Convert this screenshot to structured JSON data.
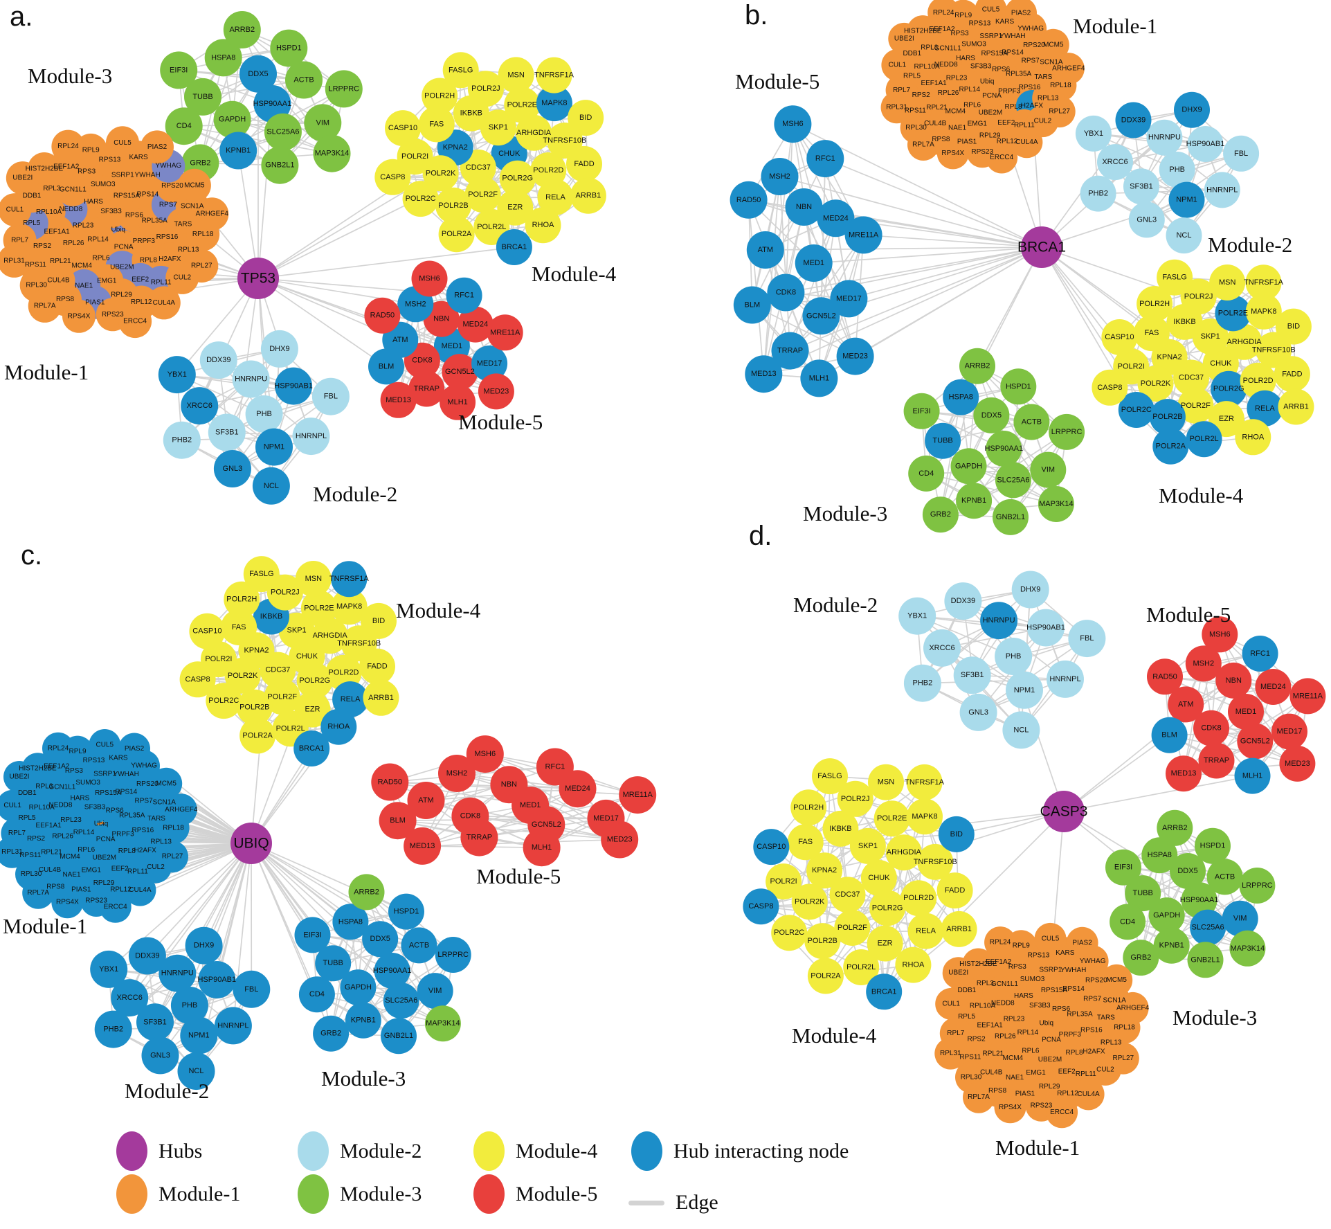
{
  "palette": {
    "hub": "#A43A9C",
    "module1": "#F2953B",
    "module2": "#A9DBEB",
    "module3": "#7FC242",
    "module4": "#F2EC3D",
    "module5": "#E8403C",
    "hub_interacting": "#1C8EC9",
    "hub_interacting_muted": "#7B87C7",
    "edge": "#D3D3D3",
    "node_label": "#111111"
  },
  "gene_sets": {
    "m1": [
      "Ubiq",
      "RPL14",
      "SF3B3",
      "PCNA",
      "RPL23",
      "RPS6",
      "RPL6",
      "HARS",
      "PRPF3",
      "RPL26",
      "RPS15A",
      "UBE2M",
      "NEDD8",
      "RPL35A",
      "MCM4",
      "SUMO3",
      "RPL8",
      "EEF1A1",
      "RPS14",
      "EMG1",
      "GCN1L1",
      "RPS16",
      "RPL21",
      "SSRP1",
      "EEF2",
      "RPL10A",
      "RPS7",
      "NAE1",
      "RPS3",
      "H2AFX",
      "RPS2",
      "YWHAH",
      "RPL29",
      "RPL3",
      "TARS",
      "CUL4B",
      "RPS13",
      "RPL11",
      "RPL5",
      "RPS20",
      "PIAS1",
      "EEF1A2",
      "RPL13",
      "RPS11",
      "KARS",
      "RPL12",
      "DDB1",
      "SCN1A",
      "RPS8",
      "RPL9",
      "CUL2",
      "RPL7",
      "YWHAG",
      "RPS23",
      "HIST2H2BE",
      "RPL18",
      "RPL30",
      "CUL5",
      "CUL4A",
      "CUL1",
      "MCM5",
      "RPS4X",
      "RPL24",
      "RPL27",
      "RPL31",
      "PIAS2",
      "ERCC4",
      "UBE2I",
      "ARHGEF4",
      "RPL7A"
    ],
    "m2": [
      "PHB",
      "SF3B1",
      "HNRNPU",
      "NPM1",
      "XRCC6",
      "HSP90AB1",
      "GNL3",
      "DDX39",
      "HNRNPL",
      "PHB2",
      "DHX9",
      "NCL",
      "YBX1",
      "FBL"
    ],
    "m3": [
      "HSP90AA1",
      "GAPDH",
      "DDX5",
      "SLC25A6",
      "TUBB",
      "ACTB",
      "KPNB1",
      "HSPA8",
      "VIM",
      "CD4",
      "HSPD1",
      "GNB2L1",
      "EIF3I",
      "LRPPRC",
      "GRB2",
      "ARRB2",
      "MAP3K14"
    ],
    "m4": [
      "CHUK",
      "CDC37",
      "SKP1",
      "POLR2G",
      "KPNA2",
      "ARHGDIA",
      "POLR2F",
      "IKBKB",
      "POLR2D",
      "POLR2K",
      "POLR2E",
      "EZR",
      "FAS",
      "TNFRSF10B",
      "POLR2B",
      "POLR2J",
      "RELA",
      "POLR2I",
      "MAPK8",
      "POLR2L",
      "POLR2H",
      "FADD",
      "POLR2C",
      "MSN",
      "RHOA",
      "CASP10",
      "BID",
      "POLR2A",
      "FASLG",
      "ARRB1",
      "CASP8",
      "TNFRSF1A",
      "BRCA1"
    ],
    "m5": [
      "MED1",
      "CDK8",
      "NBN",
      "GCN5L2",
      "ATM",
      "MED24",
      "TRRAP",
      "MSH2",
      "MED17",
      "BLM",
      "RFC1",
      "MLH1",
      "RAD50",
      "MRE11A",
      "MED13",
      "MSH6",
      "MED23"
    ]
  },
  "panels": [
    {
      "letter": "a.",
      "hub": {
        "label": "TP53"
      },
      "modules": [
        {
          "name": "Module-3",
          "set": "m3",
          "accents": [
            "DDX5",
            "KPNB1",
            "HSP90AA1"
          ]
        },
        {
          "name": "Module-4",
          "set": "m4",
          "accents": [
            "KPNA2",
            "CHUK",
            "MAPK8",
            "BRCA1"
          ]
        },
        {
          "name": "Module-1",
          "set": "m1",
          "accent_color": "hub_interacting_muted",
          "accents": [
            "RPL5",
            "RPL11",
            "EEF2",
            "UBE2M",
            "NEDD8",
            "PIAS1",
            "RPS7",
            "NAE1",
            "Ubiq",
            "YWHAG"
          ]
        },
        {
          "name": "Module-2",
          "set": "m2",
          "accents": [
            "XRCC6",
            "NPM1",
            "HSP90AB1",
            "GNL3",
            "NCL",
            "YBX1"
          ]
        },
        {
          "name": "Module-5",
          "set": "m5",
          "accents": [
            "MSH2",
            "MED1",
            "MED17",
            "RFC1",
            "BLM",
            "ATM"
          ]
        }
      ]
    },
    {
      "letter": "b.",
      "hub": {
        "label": "BRCA1"
      },
      "modules": [
        {
          "name": "Module-1",
          "set": "m1",
          "accents": [
            "H2AFX",
            "Ubiq"
          ]
        },
        {
          "name": "Module-2",
          "set": "m2",
          "accents": [
            "NPM1",
            "DHX9",
            "DDX39"
          ]
        },
        {
          "name": "Module-5",
          "set": "m5",
          "mode": "inverted",
          "exceptions": []
        },
        {
          "name": "Module-3",
          "set": "m3",
          "accents": [
            "TUBB",
            "HSPA8"
          ]
        },
        {
          "name": "Module-4",
          "set": "m4",
          "exclude": [
            "BRCA1"
          ],
          "accents": [
            "POLR2A",
            "POLR2B",
            "POLR2C",
            "POLR2E",
            "POLR2G",
            "POLR2L",
            "RELA"
          ]
        }
      ]
    },
    {
      "letter": "c.",
      "hub": {
        "label": "UBIQ"
      },
      "modules": [
        {
          "name": "Module-4",
          "set": "m4",
          "accents": [
            "BRCA1",
            "IKBKB",
            "TNFRSF1A",
            "RELA",
            "RHOA"
          ]
        },
        {
          "name": "Module-1",
          "set": "m1",
          "mode": "inverted",
          "exceptions": [
            "Ubiq"
          ]
        },
        {
          "name": "Module-5",
          "set": "m5",
          "accents": []
        },
        {
          "name": "Module-2",
          "set": "m2",
          "mode": "inverted",
          "exceptions": []
        },
        {
          "name": "Module-3",
          "set": "m3",
          "mode": "inverted",
          "exceptions": [
            "ARRB2",
            "MAP3K14"
          ]
        }
      ]
    },
    {
      "letter": "d.",
      "hub": {
        "label": "CASP3"
      },
      "modules": [
        {
          "name": "Module-2",
          "set": "m2",
          "accents": [
            "HNRNPU"
          ]
        },
        {
          "name": "Module-5",
          "set": "m5",
          "accents": [
            "RFC1",
            "MLH1",
            "BLM"
          ]
        },
        {
          "name": "Module-4",
          "set": "m4",
          "accents": [
            "BRCA1",
            "CASP10",
            "CASP8",
            "BID"
          ]
        },
        {
          "name": "Module-3",
          "set": "m3",
          "accents": [
            "VIM",
            "SLC25A6"
          ]
        },
        {
          "name": "Module-1",
          "set": "m1",
          "accents": [],
          "extra_hub_links": [
            "Ubiq"
          ]
        }
      ]
    }
  ],
  "legend": {
    "items": [
      {
        "label": "Hubs",
        "color": "hub",
        "shape": "ellipse"
      },
      {
        "label": "Module-1",
        "color": "module1",
        "shape": "ellipse"
      },
      {
        "label": "Module-2",
        "color": "module2",
        "shape": "ellipse"
      },
      {
        "label": "Module-3",
        "color": "module3",
        "shape": "ellipse"
      },
      {
        "label": "Module-4",
        "color": "module4",
        "shape": "ellipse"
      },
      {
        "label": "Module-5",
        "color": "module5",
        "shape": "ellipse"
      },
      {
        "label": "Hub interacting node",
        "color": "hub_interacting",
        "shape": "ellipse"
      },
      {
        "label": "Edge",
        "color": "edge",
        "shape": "line"
      }
    ]
  }
}
